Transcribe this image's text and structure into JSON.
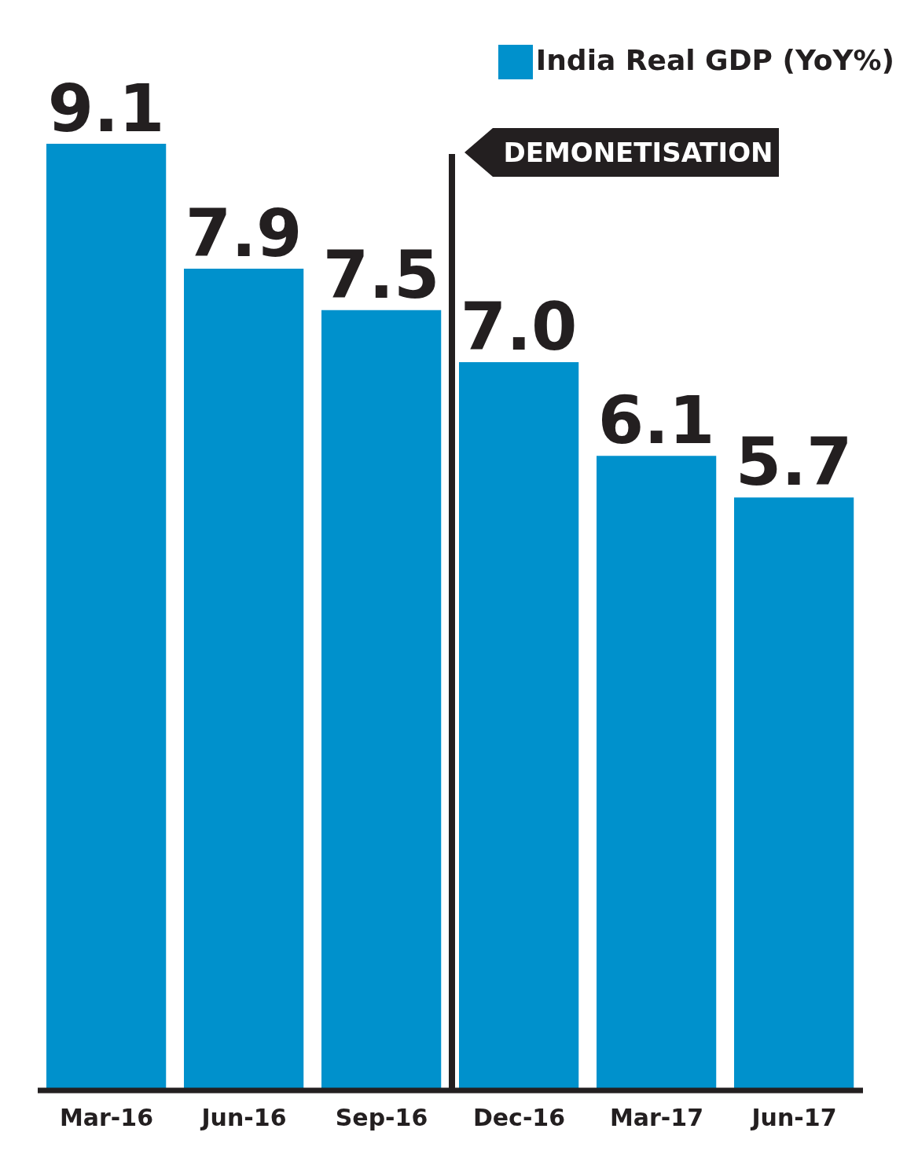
{
  "chart_data": {
    "type": "bar",
    "categories": [
      "Mar-16",
      "Jun-16",
      "Sep-16",
      "Dec-16",
      "Mar-17",
      "Jun-17"
    ],
    "series": [
      {
        "name": "India Real GDP (YoY%)",
        "color": "#0091cc",
        "values": [
          9.1,
          7.9,
          7.5,
          7.0,
          6.1,
          5.7
        ],
        "value_labels": [
          "9.1",
          "7.9",
          "7.5",
          "7.0",
          "6.1",
          "5.7"
        ]
      }
    ],
    "annotations": [
      "DEMONETISATION"
    ],
    "legend": "top right",
    "grid": false
  }
}
